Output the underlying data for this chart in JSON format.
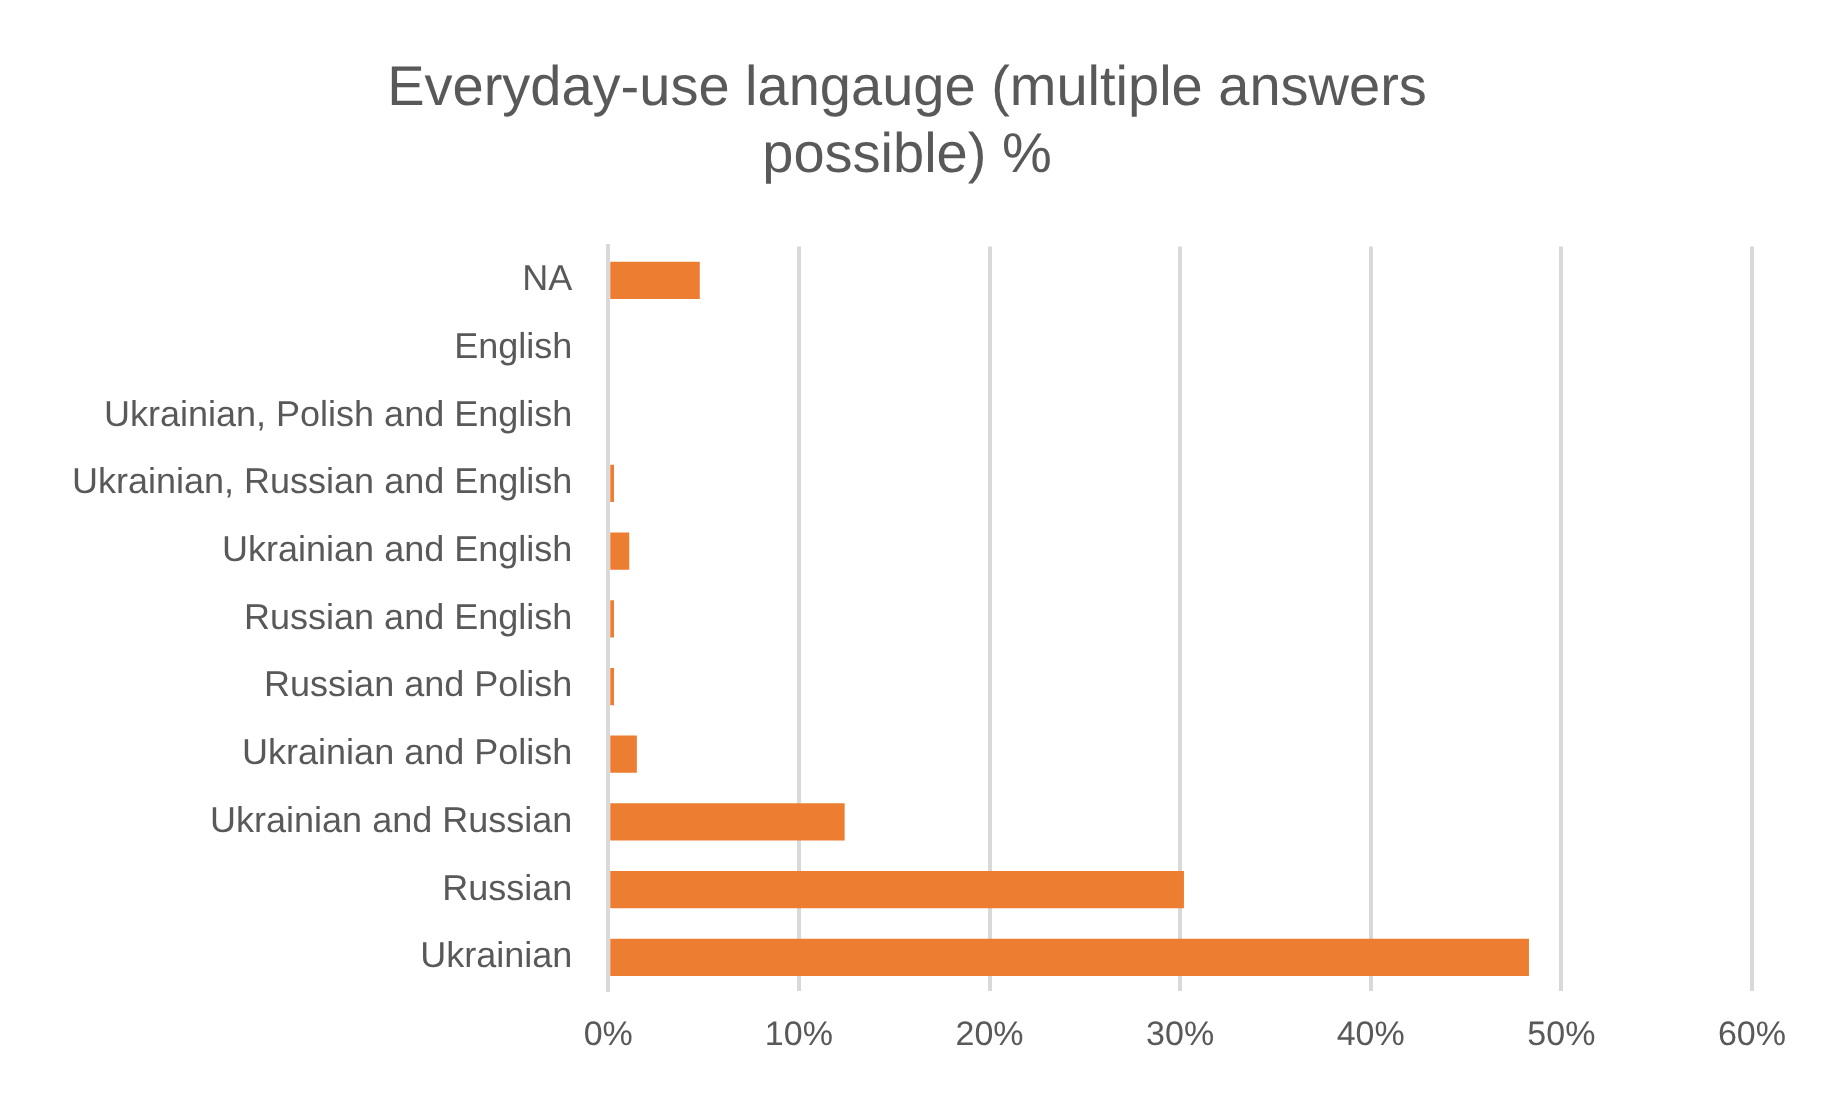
{
  "chart_data": {
    "type": "bar",
    "orientation": "horizontal",
    "title": "Everyday-use langauge (multiple answers possible) %",
    "categories": [
      "NA",
      "English",
      "Ukrainian, Polish and English",
      "Ukrainian, Russian and English",
      "Ukrainian and English",
      "Russian and English",
      "Russian and Polish",
      "Ukrainian and Polish",
      "Ukrainian and Russian",
      "Russian",
      "Ukrainian"
    ],
    "values": [
      4.8,
      0,
      0,
      0.3,
      1.1,
      0.3,
      0.3,
      1.5,
      12.4,
      30.2,
      48.3
    ],
    "color": "#ed7d31",
    "xlim": [
      0,
      60
    ],
    "xticks": [
      {
        "value": 0,
        "label": "0%"
      },
      {
        "value": 10,
        "label": "10%"
      },
      {
        "value": 20,
        "label": "20%"
      },
      {
        "value": 30,
        "label": "30%"
      },
      {
        "value": 40,
        "label": "40%"
      },
      {
        "value": 50,
        "label": "50%"
      },
      {
        "value": 60,
        "label": "60%"
      }
    ],
    "grid": "x"
  }
}
